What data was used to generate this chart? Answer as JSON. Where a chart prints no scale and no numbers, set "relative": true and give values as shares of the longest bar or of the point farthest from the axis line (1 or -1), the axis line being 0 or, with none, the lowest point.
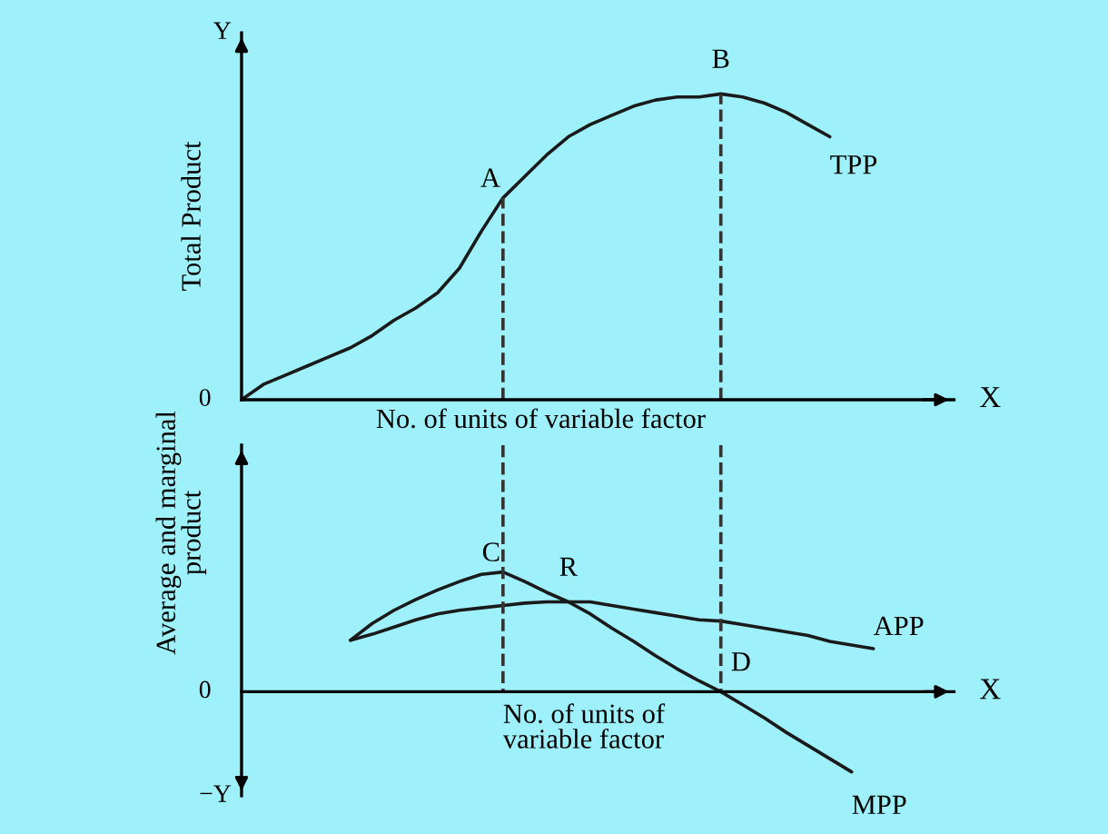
{
  "chart_data": [
    {
      "type": "line",
      "relative": true,
      "ylabel": "Total Product",
      "xlabel": "No. of units of variable factor",
      "categories": [
        null,
        null,
        null,
        null,
        null,
        null,
        null,
        null,
        null,
        null,
        null,
        null,
        null,
        null,
        null,
        null,
        null,
        null,
        null,
        null,
        null,
        null,
        null,
        null,
        null,
        null,
        null,
        null,
        null,
        null,
        null,
        null,
        null
      ],
      "series": [
        {
          "name": "TPP",
          "color": "#1a1a1a",
          "values": [
            0,
            0.05,
            0.08,
            0.11,
            0.14,
            0.17,
            0.21,
            0.26,
            0.3,
            0.35,
            0.43,
            0.55,
            0.66,
            0.73,
            0.8,
            0.86,
            0.9,
            0.93,
            0.96,
            0.98,
            0.99,
            0.99,
            1.0,
            0.99,
            0.97,
            0.94,
            0.9,
            0.86,
            null,
            null,
            null,
            null,
            null
          ]
        }
      ],
      "annotations": [
        "0",
        "X",
        "Y",
        {
          "text": "A",
          "y": 0.66
        },
        {
          "text": "B",
          "y": 1.0
        }
      ],
      "grid": false,
      "legend": false,
      "marker": "none",
      "line_style": "solid"
    },
    {
      "type": "line",
      "relative": true,
      "ylabel": "Average and marginal\nproduct",
      "xlabel": "No. of units of\nvariable factor",
      "categories": [
        null,
        null,
        null,
        null,
        null,
        null,
        null,
        null,
        null,
        null,
        null,
        null,
        null,
        null,
        null,
        null,
        null,
        null,
        null,
        null,
        null,
        null,
        null,
        null,
        null,
        null,
        null,
        null,
        null,
        null,
        null,
        null,
        null
      ],
      "series": [
        {
          "name": "APP",
          "color": "#1a1a1a",
          "values": [
            null,
            null,
            null,
            null,
            null,
            0.43,
            0.48,
            0.54,
            0.6,
            0.65,
            0.68,
            0.7,
            0.72,
            0.74,
            0.75,
            0.75,
            0.75,
            0.72,
            0.69,
            0.66,
            0.63,
            0.6,
            0.59,
            0.56,
            0.53,
            0.5,
            0.47,
            0.42,
            0.39,
            0.36,
            null,
            null,
            null
          ]
        },
        {
          "name": "MPP",
          "color": "#1a1a1a",
          "values": [
            null,
            null,
            null,
            null,
            null,
            0.43,
            0.57,
            0.68,
            0.77,
            0.85,
            0.92,
            0.98,
            1.0,
            0.92,
            0.83,
            0.75,
            0.65,
            0.53,
            0.42,
            0.3,
            0.19,
            0.09,
            0,
            -0.11,
            -0.22,
            -0.34,
            -0.45,
            -0.56,
            -0.67,
            null,
            null,
            null,
            null
          ]
        }
      ],
      "annotations": [
        "0",
        "X",
        "−Y",
        {
          "text": "C",
          "y": 1.0
        },
        {
          "text": "R",
          "y": 0.75
        },
        {
          "text": "D",
          "y": 0
        }
      ],
      "grid": false,
      "legend": false,
      "marker": "none",
      "line_style": "solid"
    }
  ]
}
